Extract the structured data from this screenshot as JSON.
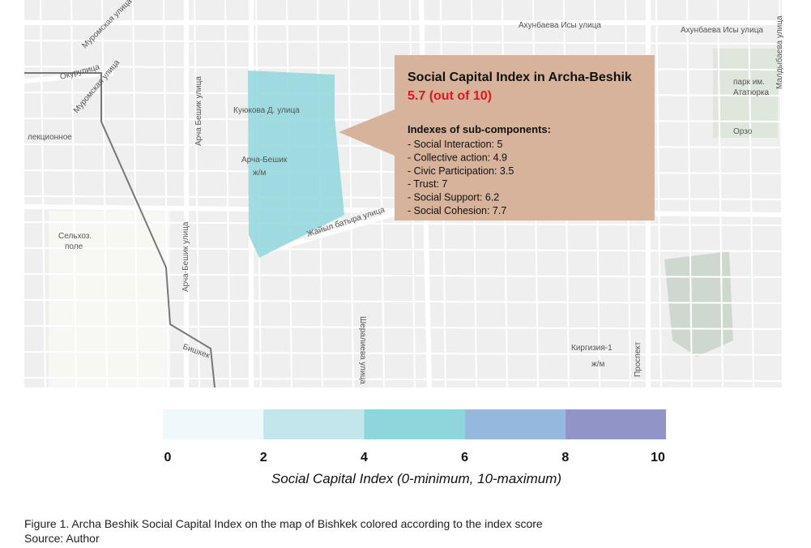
{
  "map": {
    "labels": [
      "Ахунбаева Исы улица",
      "Ахунбаева Исы улица",
      "Муромская улица",
      "Окурулица",
      "Муромская улица",
      "лекционное",
      "Куюкова Д. улица",
      "Арча-Бешик",
      "ж/м",
      "Арча Бешик улица",
      "Жайыл батыра улица",
      "Шералиева улица",
      "Арча-Бешик улица",
      "Сельхоз.",
      "поле",
      "Бишкек",
      "Киргизия-1",
      "ж/м",
      "парк им.",
      "Ататюрка",
      "Малдыбаева улица",
      "Орзо",
      "Проспект"
    ],
    "region_color": "#8fd6dc"
  },
  "callout": {
    "title": "Social Capital Index in Archa-Beshik",
    "score": "5.7 (out of 10)",
    "subtitle": "Indexes of sub-components:",
    "items": [
      "- Social Interaction: 5",
      "- Collective action: 4.9",
      "- Civic Participation: 3.5",
      "- Trust: 7",
      "- Social Support: 6.2",
      "- Social Cohesion: 7.7"
    ]
  },
  "legend": {
    "title": "Social Capital Index (0-minimum, 10-maximum)",
    "ticks": [
      0,
      2,
      4,
      6,
      8,
      10
    ],
    "xlim": [
      0,
      10
    ],
    "colors": [
      "#eff8fb",
      "#c2e6ec",
      "#8fd6dc",
      "#94b8de",
      "#9094c7"
    ]
  },
  "caption": {
    "figure": "Figure 1. Archa Beshik Social Capital Index on the map of Bishkek colored according to the index score",
    "source": "Source: Author"
  }
}
